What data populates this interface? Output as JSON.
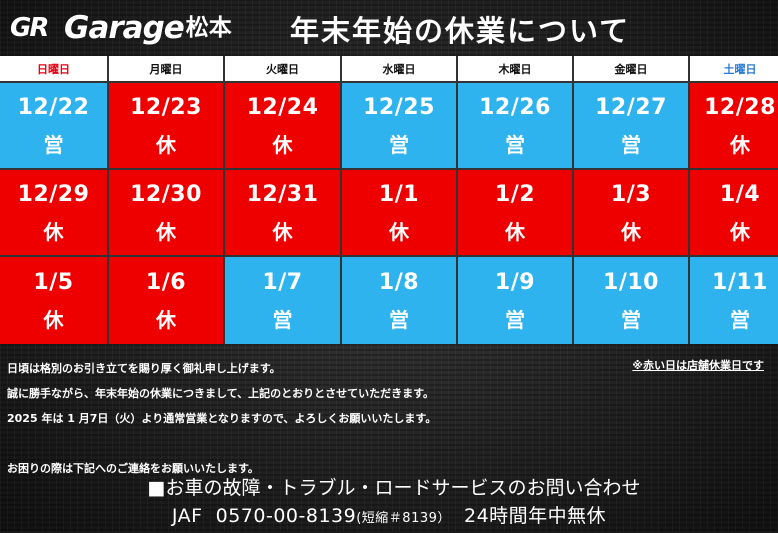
{
  "header": {
    "logo_gr": "GR",
    "logo_garage": "Garage",
    "logo_location": "松本",
    "title": "年末年始の休業について"
  },
  "calendar": {
    "weekdays": [
      {
        "label": "日曜日",
        "kind": "sun"
      },
      {
        "label": "月曜日",
        "kind": "weekday"
      },
      {
        "label": "火曜日",
        "kind": "weekday"
      },
      {
        "label": "水曜日",
        "kind": "weekday"
      },
      {
        "label": "木曜日",
        "kind": "weekday"
      },
      {
        "label": "金曜日",
        "kind": "weekday"
      },
      {
        "label": "土曜日",
        "kind": "sat"
      }
    ],
    "weeks": [
      [
        {
          "date": "12/22",
          "status": "営",
          "open": true
        },
        {
          "date": "12/23",
          "status": "休",
          "open": false
        },
        {
          "date": "12/24",
          "status": "休",
          "open": false
        },
        {
          "date": "12/25",
          "status": "営",
          "open": true
        },
        {
          "date": "12/26",
          "status": "営",
          "open": true
        },
        {
          "date": "12/27",
          "status": "営",
          "open": true
        },
        {
          "date": "12/28",
          "status": "休",
          "open": false
        }
      ],
      [
        {
          "date": "12/29",
          "status": "休",
          "open": false
        },
        {
          "date": "12/30",
          "status": "休",
          "open": false
        },
        {
          "date": "12/31",
          "status": "休",
          "open": false
        },
        {
          "date": "1/1",
          "status": "休",
          "open": false
        },
        {
          "date": "1/2",
          "status": "休",
          "open": false
        },
        {
          "date": "1/3",
          "status": "休",
          "open": false
        },
        {
          "date": "1/4",
          "status": "休",
          "open": false
        }
      ],
      [
        {
          "date": "1/5",
          "status": "休",
          "open": false
        },
        {
          "date": "1/6",
          "status": "休",
          "open": false
        },
        {
          "date": "1/7",
          "status": "営",
          "open": true
        },
        {
          "date": "1/8",
          "status": "営",
          "open": true
        },
        {
          "date": "1/9",
          "status": "営",
          "open": true
        },
        {
          "date": "1/10",
          "status": "営",
          "open": true
        },
        {
          "date": "1/11",
          "status": "営",
          "open": true
        }
      ]
    ],
    "colors": {
      "open": "#2fb3ee",
      "closed": "#ee0000",
      "sunday_label": "#e60012",
      "saturday_label": "#2a7bd6"
    }
  },
  "notes": {
    "legend": "※赤い日は店舗休業日です",
    "line1": "日頃は格別のお引き立てを賜り厚く御礼申し上げます。",
    "line2": "誠に勝手ながら、年末年始の休業につきまして、上記のとおりとさせていただきます。",
    "line3": "2025 年は 1 月7日（火）より通常営業となりますので、よろしくお願いいたします。",
    "line4": "お困りの際は下記へのご連絡をお願いいたします。"
  },
  "contact": {
    "heading": "■お車の故障・トラブル・ロードサービスのお問い合わせ",
    "jaf_label": "JAF",
    "phone": "0570-00-8139",
    "short_code": "(短縮＃8139）",
    "hours": "24時間年中無休"
  }
}
